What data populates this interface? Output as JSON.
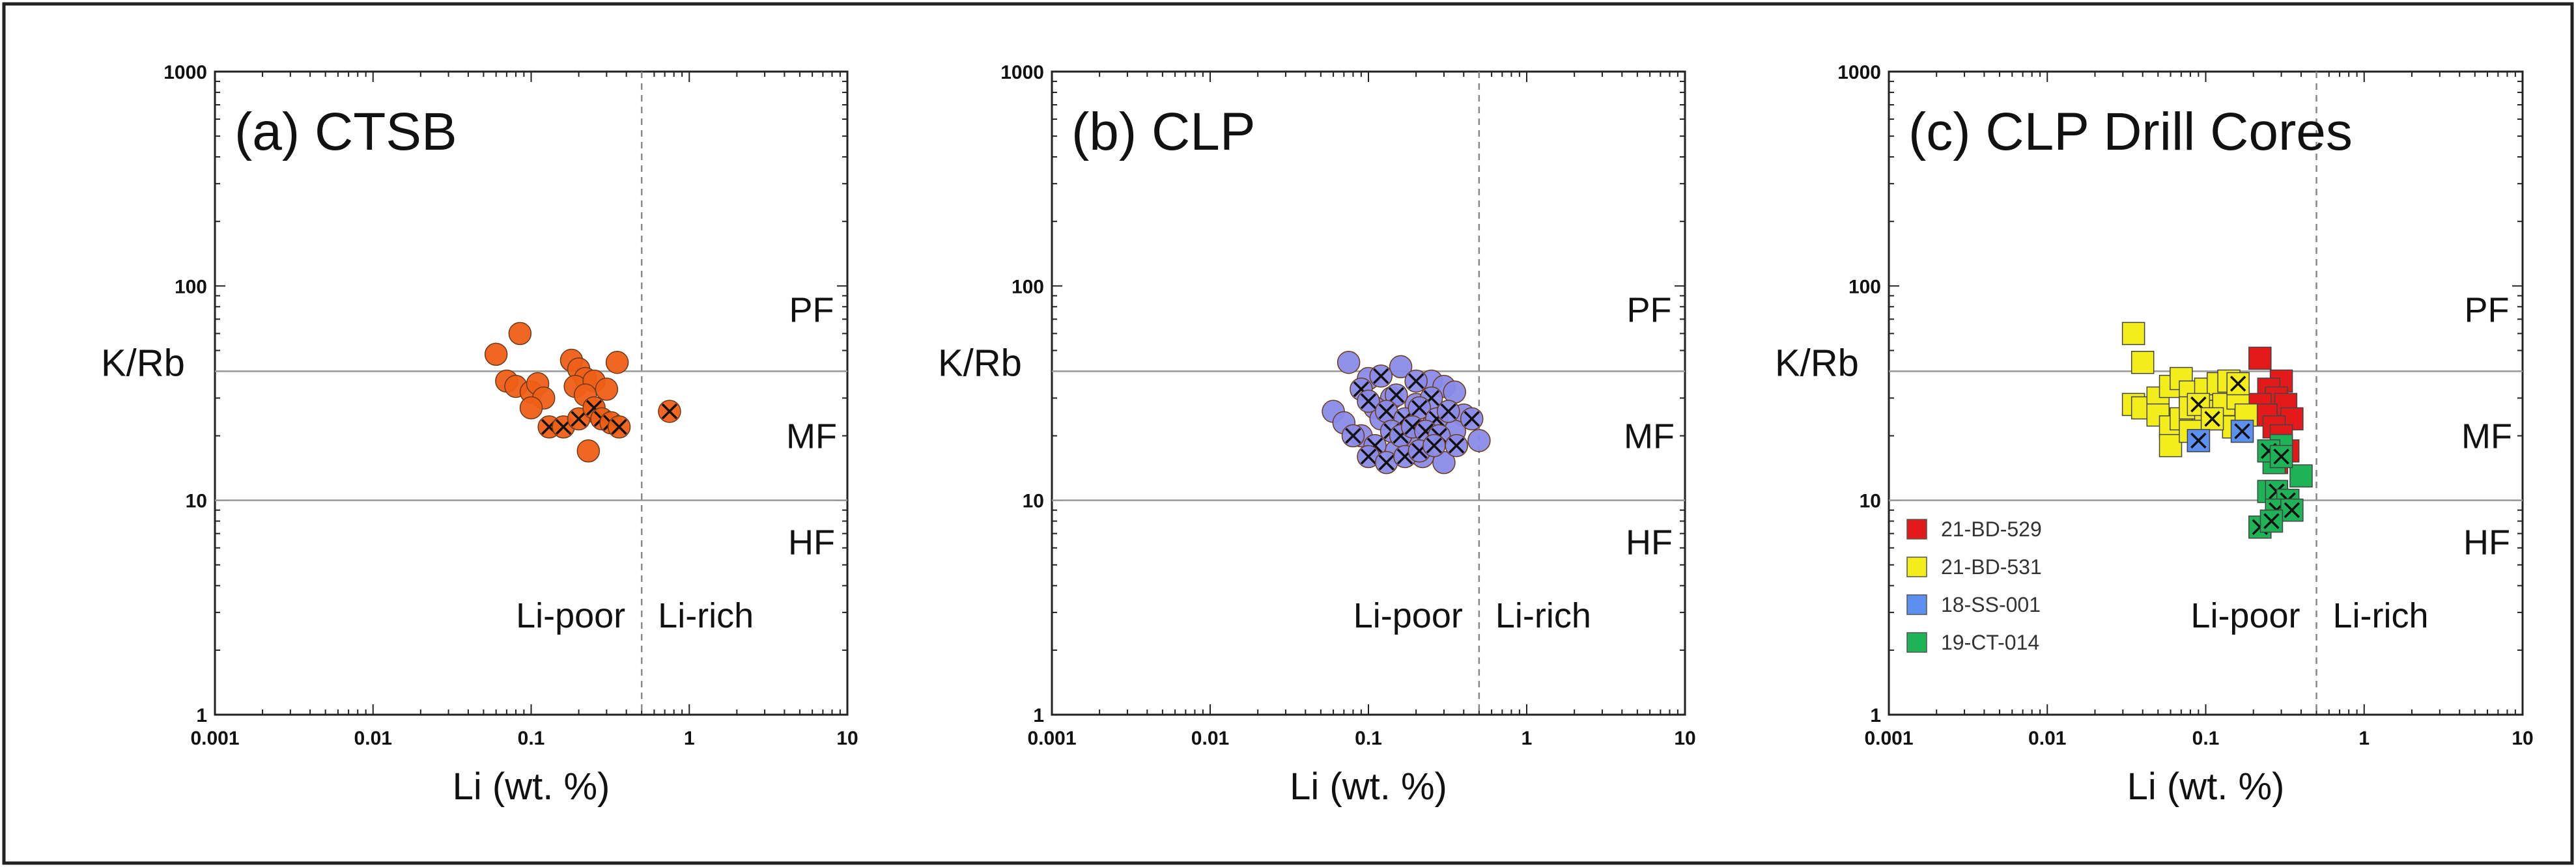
{
  "chart_data": [
    {
      "type": "scatter",
      "title": "(a)  CTSB",
      "xlabel": "Li (wt. %)",
      "ylabel": "K/Rb",
      "xscale": "log",
      "yscale": "log",
      "xlim": [
        0.001,
        10
      ],
      "ylim": [
        1,
        1000
      ],
      "x_ticks": [
        "0.001",
        "0.01",
        "0.1",
        "1",
        "10"
      ],
      "y_ticks": [
        "1",
        "10",
        "100",
        "1000"
      ],
      "hlines": [
        10,
        40
      ],
      "vline": 0.5,
      "region_labels": {
        "pf": "PF",
        "mf": "MF",
        "hf": "HF",
        "li_poor": "Li-poor",
        "li_rich": "Li-rich"
      },
      "series": [
        {
          "name": "CTSB",
          "marker": "circle",
          "color": "#ee5f17",
          "points": [
            [
              0.06,
              48
            ],
            [
              0.085,
              60
            ],
            [
              0.07,
              36
            ],
            [
              0.08,
              34
            ],
            [
              0.1,
              32
            ],
            [
              0.11,
              35
            ],
            [
              0.12,
              30
            ],
            [
              0.1,
              27
            ],
            [
              0.18,
              45
            ],
            [
              0.2,
              41
            ],
            [
              0.22,
              37
            ],
            [
              0.19,
              34
            ],
            [
              0.25,
              36
            ],
            [
              0.3,
              33
            ],
            [
              0.22,
              31
            ],
            [
              0.35,
              44
            ],
            [
              0.25,
              26
            ],
            [
              0.23,
              17
            ]
          ]
        },
        {
          "name": "CTSB (crossed)",
          "marker": "circle-x",
          "color": "#ee5f17",
          "points": [
            [
              0.13,
              22
            ],
            [
              0.16,
              22
            ],
            [
              0.2,
              24
            ],
            [
              0.25,
              27
            ],
            [
              0.28,
              24
            ],
            [
              0.32,
              23
            ],
            [
              0.36,
              22
            ],
            [
              0.75,
              26
            ]
          ]
        }
      ]
    },
    {
      "type": "scatter",
      "title": "(b)  CLP",
      "xlabel": "Li (wt. %)",
      "ylabel": "K/Rb",
      "xscale": "log",
      "yscale": "log",
      "xlim": [
        0.001,
        10
      ],
      "ylim": [
        1,
        1000
      ],
      "x_ticks": [
        "0.001",
        "0.01",
        "0.1",
        "1",
        "10"
      ],
      "y_ticks": [
        "1",
        "10",
        "100",
        "1000"
      ],
      "hlines": [
        10,
        40
      ],
      "vline": 0.5,
      "region_labels": {
        "pf": "PF",
        "mf": "MF",
        "hf": "HF",
        "li_poor": "Li-poor",
        "li_rich": "Li-rich"
      },
      "series": [
        {
          "name": "CLP",
          "marker": "circle",
          "color": "#8a8be8",
          "points": [
            [
              0.075,
              44
            ],
            [
              0.16,
              42
            ],
            [
              0.1,
              37
            ],
            [
              0.25,
              36
            ],
            [
              0.3,
              34
            ],
            [
              0.35,
              32
            ],
            [
              0.06,
              26
            ],
            [
              0.14,
              30
            ],
            [
              0.2,
              28
            ],
            [
              0.11,
              27
            ],
            [
              0.07,
              23
            ],
            [
              0.4,
              25
            ],
            [
              0.09,
              20
            ],
            [
              0.12,
              24
            ],
            [
              0.18,
              19
            ],
            [
              0.25,
              22
            ],
            [
              0.35,
              21
            ],
            [
              0.5,
              19
            ],
            [
              0.15,
              17
            ],
            [
              0.22,
              16
            ],
            [
              0.3,
              15
            ]
          ]
        },
        {
          "name": "CLP (crossed)",
          "marker": "circle-x",
          "color": "#8a8be8",
          "points": [
            [
              0.09,
              33
            ],
            [
              0.12,
              38
            ],
            [
              0.1,
              29
            ],
            [
              0.15,
              31
            ],
            [
              0.2,
              36
            ],
            [
              0.25,
              30
            ],
            [
              0.13,
              26
            ],
            [
              0.17,
              24
            ],
            [
              0.21,
              27
            ],
            [
              0.27,
              24
            ],
            [
              0.32,
              26
            ],
            [
              0.45,
              24
            ],
            [
              0.08,
              20
            ],
            [
              0.11,
              18
            ],
            [
              0.14,
              21
            ],
            [
              0.16,
              20
            ],
            [
              0.19,
              22
            ],
            [
              0.23,
              21
            ],
            [
              0.28,
              20
            ],
            [
              0.36,
              18
            ],
            [
              0.1,
              16
            ],
            [
              0.13,
              15
            ],
            [
              0.17,
              16
            ],
            [
              0.21,
              17
            ],
            [
              0.26,
              18
            ]
          ]
        }
      ]
    },
    {
      "type": "scatter",
      "title": "(c)  CLP Drill Cores",
      "xlabel": "Li (wt. %)",
      "ylabel": "K/Rb",
      "xscale": "log",
      "yscale": "log",
      "xlim": [
        0.001,
        10
      ],
      "ylim": [
        1,
        1000
      ],
      "x_ticks": [
        "0.001",
        "0.01",
        "0.1",
        "1",
        "10"
      ],
      "y_ticks": [
        "1",
        "10",
        "100",
        "1000"
      ],
      "hlines": [
        10,
        40
      ],
      "vline": 0.5,
      "region_labels": {
        "pf": "PF",
        "mf": "MF",
        "hf": "HF",
        "li_poor": "Li-poor",
        "li_rich": "Li-rich"
      },
      "legend": {
        "position": "lower-left",
        "entries": [
          "21-BD-529",
          "21-BD-531",
          "18-SS-001",
          "19-CT-014"
        ]
      },
      "series": [
        {
          "name": "21-BD-529",
          "marker": "square",
          "color": "#e41a1a",
          "points": [
            [
              0.22,
              46
            ],
            [
              0.3,
              36
            ],
            [
              0.25,
              33
            ],
            [
              0.28,
              30
            ],
            [
              0.22,
              28
            ],
            [
              0.32,
              28
            ],
            [
              0.24,
              25
            ],
            [
              0.35,
              24
            ],
            [
              0.27,
              22
            ],
            [
              0.3,
              20
            ],
            [
              0.33,
              17
            ],
            [
              0.28,
              15
            ]
          ]
        },
        {
          "name": "21-BD-531",
          "marker": "square",
          "color": "#f3ee1b",
          "points": [
            [
              0.035,
              60
            ],
            [
              0.04,
              44
            ],
            [
              0.035,
              28
            ],
            [
              0.04,
              27
            ],
            [
              0.05,
              30
            ],
            [
              0.06,
              34
            ],
            [
              0.07,
              37
            ],
            [
              0.08,
              32
            ],
            [
              0.1,
              33
            ],
            [
              0.12,
              35
            ],
            [
              0.14,
              36
            ],
            [
              0.05,
              25
            ],
            [
              0.06,
              22
            ],
            [
              0.07,
              24
            ],
            [
              0.08,
              27
            ],
            [
              0.1,
              26
            ],
            [
              0.12,
              24
            ],
            [
              0.15,
              22
            ],
            [
              0.09,
              19
            ],
            [
              0.06,
              18
            ],
            [
              0.08,
              21
            ],
            [
              0.13,
              28
            ],
            [
              0.16,
              30
            ],
            [
              0.18,
              25
            ]
          ]
        },
        {
          "name": "21-BD-531 (crossed)",
          "marker": "square-x",
          "color": "#f3ee1b",
          "points": [
            [
              0.09,
              28
            ],
            [
              0.11,
              24
            ],
            [
              0.16,
              35
            ]
          ]
        },
        {
          "name": "18-SS-001",
          "marker": "square-x",
          "color": "#5b8ff0",
          "points": [
            [
              0.09,
              19
            ],
            [
              0.17,
              21
            ]
          ]
        },
        {
          "name": "19-CT-014",
          "marker": "square",
          "color": "#1db356",
          "points": [
            [
              0.3,
              18
            ],
            [
              0.27,
              15
            ],
            [
              0.4,
              13
            ],
            [
              0.25,
              11
            ]
          ]
        },
        {
          "name": "19-CT-014 (crossed)",
          "marker": "square-x",
          "color": "#1db356",
          "points": [
            [
              0.25,
              17
            ],
            [
              0.3,
              16
            ],
            [
              0.28,
              11
            ],
            [
              0.33,
              10
            ],
            [
              0.28,
              9
            ],
            [
              0.35,
              9
            ],
            [
              0.22,
              7.5
            ],
            [
              0.26,
              8
            ]
          ]
        }
      ]
    }
  ]
}
